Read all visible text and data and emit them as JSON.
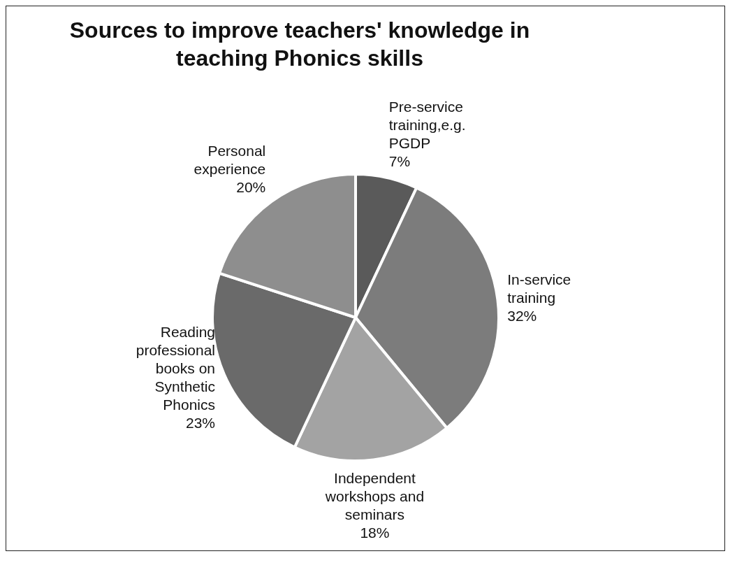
{
  "chart_data": {
    "type": "pie",
    "title": "Sources to improve teachers' knowledge in teaching Phonics skills",
    "categories": [
      "Pre-service training,e.g. PGDP",
      "In-service training",
      "Independent workshops and seminars",
      "Reading professional books on Synthetic Phonics",
      "Personal experience"
    ],
    "values": [
      7,
      32,
      18,
      23,
      20
    ],
    "value_labels": [
      "7%",
      "32%",
      "18%",
      "23%",
      "20%"
    ],
    "colors": [
      "#5a5a5a",
      "#7c7c7c",
      "#a3a3a3",
      "#6a6a6a",
      "#8e8e8e"
    ]
  }
}
